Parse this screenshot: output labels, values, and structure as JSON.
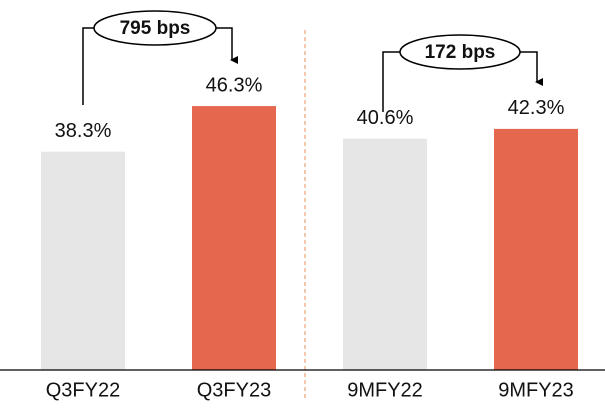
{
  "chart_data": {
    "type": "bar",
    "categories": [
      "Q3FY22",
      "Q3FY23",
      "9MFY22",
      "9MFY23"
    ],
    "values": [
      38.3,
      46.3,
      40.6,
      42.3
    ],
    "value_labels": [
      "38.3%",
      "46.3%",
      "40.6%",
      "42.3%"
    ],
    "colors": [
      "#e6e6e6",
      "#e5674e",
      "#e6e6e6",
      "#e5674e"
    ],
    "annotations": [
      "795 bps",
      "172 bps"
    ]
  }
}
